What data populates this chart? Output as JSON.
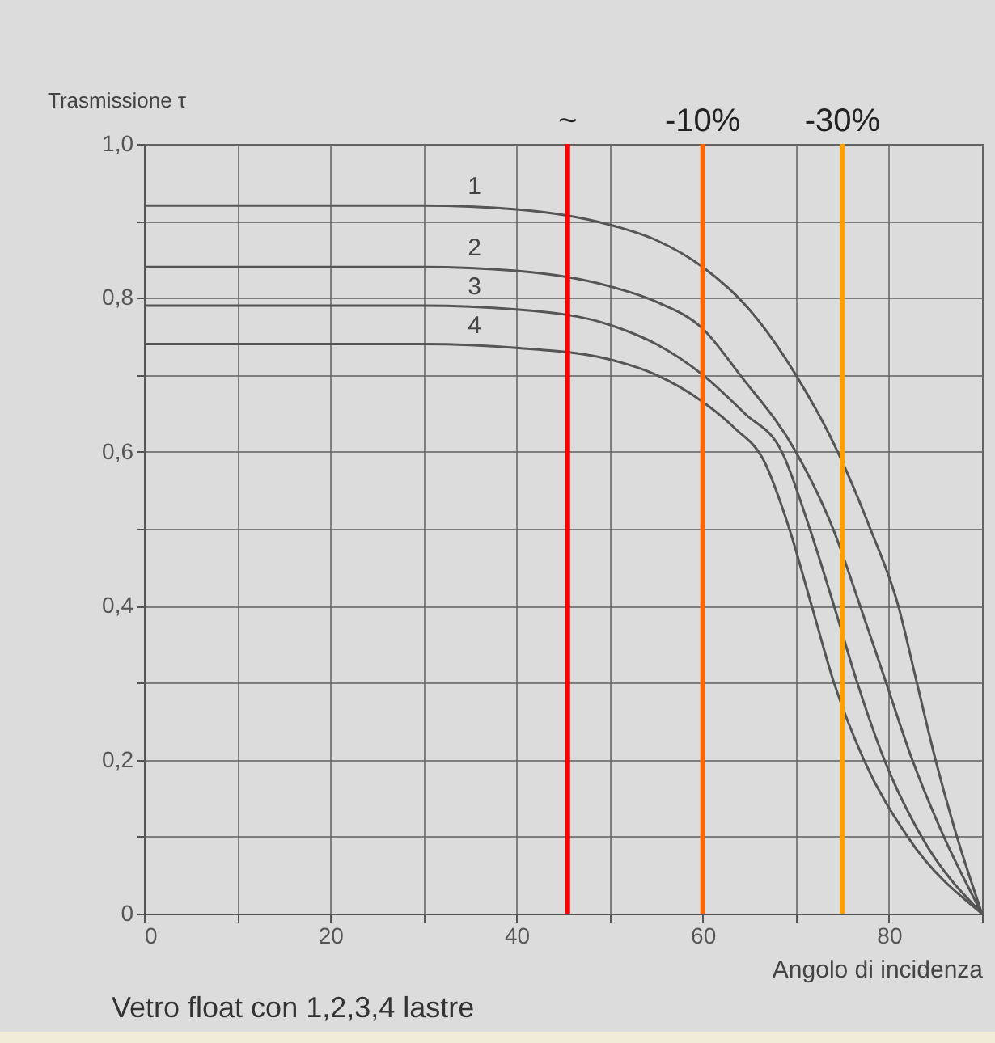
{
  "chart_data": {
    "type": "line",
    "ylabel": "Trasmissione τ",
    "xlabel": "Angolo di incidenza",
    "xlim": [
      0,
      90
    ],
    "ylim": [
      0,
      1
    ],
    "xticks": [
      0,
      {
        "value": 10,
        "label": null
      },
      20,
      {
        "value": 30,
        "label": null
      },
      40,
      {
        "value": 50,
        "label": null
      },
      60,
      {
        "value": 70,
        "label": null
      },
      80,
      {
        "value": 90,
        "label": null
      }
    ],
    "yticks": [
      0,
      {
        "value": 0.1,
        "label": null
      },
      {
        "value": 0.2,
        "label": "0,2"
      },
      {
        "value": 0.3,
        "label": null
      },
      {
        "value": 0.4,
        "label": "0,4"
      },
      {
        "value": 0.5,
        "label": null
      },
      {
        "value": 0.6,
        "label": "0,6"
      },
      {
        "value": 0.7,
        "label": null
      },
      {
        "value": 0.8,
        "label": "0,8"
      },
      {
        "value": 0.9,
        "label": null
      },
      {
        "value": 1,
        "label": "1,0"
      }
    ],
    "grid": true,
    "marker": "none",
    "line_style": "solid",
    "series": [
      {
        "color": "#555555",
        "x": [
          0,
          30,
          40,
          50,
          55,
          60,
          65,
          70,
          74.5,
          78,
          81,
          83,
          85,
          87.3,
          90
        ],
        "values": [
          0.92,
          0.92,
          0.915,
          0.895,
          0.875,
          0.84,
          0.785,
          0.7,
          0.6,
          0.5,
          0.4,
          0.3,
          0.2,
          0.1,
          0
        ]
      },
      {
        "color": "#555555",
        "x": [
          0,
          30,
          40,
          50,
          55,
          60,
          64,
          70,
          74,
          76.9,
          79.7,
          82.5,
          85.9,
          90
        ],
        "values": [
          0.84,
          0.84,
          0.835,
          0.815,
          0.795,
          0.76,
          0.7,
          0.6,
          0.5,
          0.4,
          0.3,
          0.2,
          0.1,
          0
        ]
      },
      {
        "color": "#555555",
        "x": [
          0,
          30,
          40,
          50,
          55,
          60,
          64.5,
          68.5,
          71.5,
          74.1,
          76.6,
          79.5,
          83.5,
          90
        ],
        "values": [
          0.79,
          0.79,
          0.785,
          0.765,
          0.74,
          0.7,
          0.65,
          0.6,
          0.5,
          0.4,
          0.3,
          0.2,
          0.1,
          0
        ]
      },
      {
        "color": "#555555",
        "x": [
          0,
          30,
          40,
          50,
          55,
          60,
          63.5,
          66.5,
          69.3,
          71.7,
          74.1,
          77.3,
          82,
          90
        ],
        "values": [
          0.74,
          0.74,
          0.735,
          0.72,
          0.7,
          0.665,
          0.63,
          0.59,
          0.5,
          0.4,
          0.3,
          0.2,
          0.1,
          0
        ]
      }
    ],
    "ref_lines": [
      {
        "axis": "x",
        "value": 45.5,
        "color": "#ff0000"
      },
      {
        "axis": "x",
        "value": 60,
        "color": "#ff6600"
      },
      {
        "axis": "x",
        "value": 75,
        "color": "#ffa000"
      }
    ],
    "annotations": [
      {
        "text": "1",
        "x": 35.5,
        "y": 0.92
      },
      {
        "text": "2",
        "x": 35.5,
        "y": 0.84
      },
      {
        "text": "3",
        "x": 35.5,
        "y": 0.79
      },
      {
        "text": "4",
        "x": 35.5,
        "y": 0.74
      },
      {
        "text": "~",
        "x": 45.5,
        "y": 1
      },
      {
        "text": "-10%",
        "x": 60,
        "y": 1
      },
      {
        "text": "-30%",
        "x": 75,
        "y": 1
      },
      "Vetro float con 1,2,3,4 lastre"
    ]
  }
}
